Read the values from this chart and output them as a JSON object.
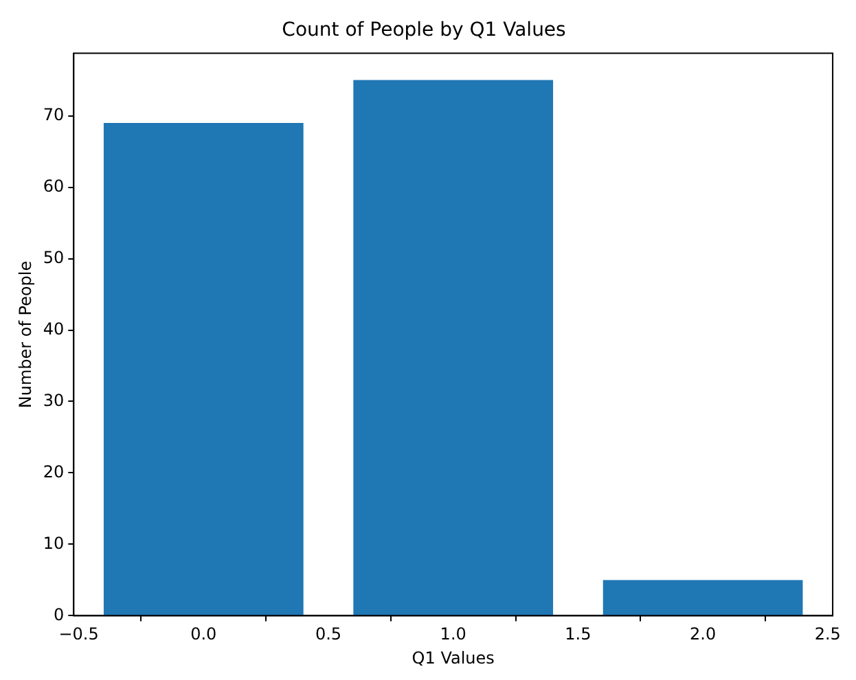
{
  "chart_data": {
    "type": "bar",
    "title": "Count of People by Q1 Values",
    "xlabel": "Q1 Values",
    "ylabel": "Number of People",
    "x": [
      0,
      1,
      2
    ],
    "values": [
      69,
      75,
      5
    ],
    "color": "#1f77b4",
    "xlim": [
      -0.52,
      2.52
    ],
    "xticks": [
      {
        "value": -0.5,
        "label": "−0.5"
      },
      {
        "value": 0,
        "label": "0.0"
      },
      {
        "value": 0.5,
        "label": "0.5"
      },
      {
        "value": 1,
        "label": "1.0"
      },
      {
        "value": 1.5,
        "label": "1.5"
      },
      {
        "value": 2,
        "label": "2.0"
      },
      {
        "value": 2.5,
        "label": "2.5"
      }
    ],
    "ylim": [
      0,
      78.75
    ],
    "yticks": [
      0,
      10,
      20,
      30,
      40,
      50,
      60,
      70
    ],
    "grid": false,
    "legend": false
  }
}
